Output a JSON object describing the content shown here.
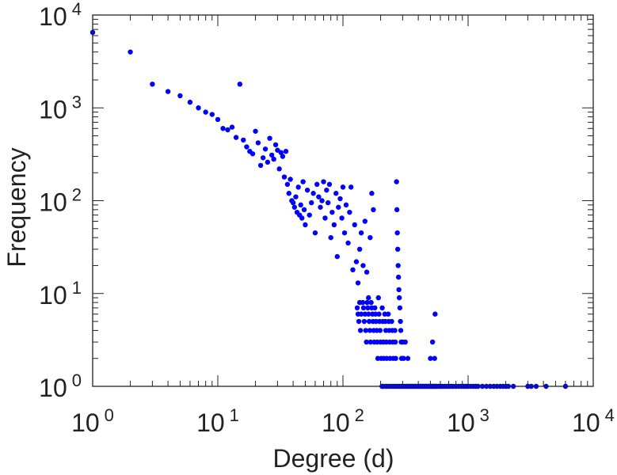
{
  "chart_data": {
    "type": "scatter",
    "title": "",
    "xlabel": "Degree (d)",
    "ylabel": "Frequency",
    "x_scale": "log",
    "y_scale": "log",
    "xlim": [
      1,
      10000
    ],
    "ylim": [
      1,
      10000
    ],
    "grid": false,
    "legend": "none",
    "marker_color": "#0000ff",
    "x_ticks": [
      {
        "base": "10",
        "exp": "0"
      },
      {
        "base": "10",
        "exp": "1"
      },
      {
        "base": "10",
        "exp": "2"
      },
      {
        "base": "10",
        "exp": "3"
      },
      {
        "base": "10",
        "exp": "4"
      }
    ],
    "y_ticks": [
      {
        "base": "10",
        "exp": "0"
      },
      {
        "base": "10",
        "exp": "1"
      },
      {
        "base": "10",
        "exp": "2"
      },
      {
        "base": "10",
        "exp": "3"
      },
      {
        "base": "10",
        "exp": "4"
      }
    ],
    "series": [
      {
        "points": [
          [
            1,
            6500
          ],
          [
            2,
            4000
          ],
          [
            3,
            1800
          ],
          [
            4,
            1500
          ],
          [
            5,
            1350
          ],
          [
            6,
            1150
          ],
          [
            7,
            1000
          ],
          [
            8,
            900
          ],
          [
            9,
            850
          ],
          [
            10,
            750
          ],
          [
            11,
            600
          ],
          [
            12,
            580
          ],
          [
            13,
            620
          ],
          [
            14,
            480
          ],
          [
            15,
            1800
          ],
          [
            16,
            450
          ],
          [
            17,
            380
          ],
          [
            18,
            340
          ],
          [
            19,
            320
          ],
          [
            20,
            560
          ],
          [
            21,
            420
          ],
          [
            22,
            240
          ],
          [
            23,
            290
          ],
          [
            24,
            360
          ],
          [
            25,
            260
          ],
          [
            26,
            470
          ],
          [
            27,
            310
          ],
          [
            28,
            280
          ],
          [
            29,
            400
          ],
          [
            30,
            350
          ],
          [
            31,
            220
          ],
          [
            32,
            330
          ],
          [
            33,
            300
          ],
          [
            34,
            180
          ],
          [
            35,
            340
          ],
          [
            36,
            150
          ],
          [
            37,
            120
          ],
          [
            38,
            170
          ],
          [
            39,
            100
          ],
          [
            40,
            95
          ],
          [
            41,
            85
          ],
          [
            42,
            110
          ],
          [
            43,
            75
          ],
          [
            44,
            140
          ],
          [
            45,
            70
          ],
          [
            46,
            90
          ],
          [
            47,
            65
          ],
          [
            48,
            160
          ],
          [
            49,
            80
          ],
          [
            50,
            55
          ],
          [
            52,
            130
          ],
          [
            54,
            70
          ],
          [
            56,
            95
          ],
          [
            58,
            120
          ],
          [
            60,
            45
          ],
          [
            62,
            150
          ],
          [
            64,
            110
          ],
          [
            66,
            85
          ],
          [
            68,
            100
          ],
          [
            70,
            160
          ],
          [
            72,
            65
          ],
          [
            74,
            130
          ],
          [
            76,
            95
          ],
          [
            78,
            150
          ],
          [
            80,
            40
          ],
          [
            82,
            75
          ],
          [
            85,
            55
          ],
          [
            88,
            120
          ],
          [
            90,
            25
          ],
          [
            92,
            85
          ],
          [
            95,
            105
          ],
          [
            98,
            65
          ],
          [
            100,
            140
          ],
          [
            103,
            45
          ],
          [
            106,
            90
          ],
          [
            110,
            35
          ],
          [
            113,
            75
          ],
          [
            116,
            140
          ],
          [
            120,
            18
          ],
          [
            124,
            55
          ],
          [
            128,
            22
          ],
          [
            132,
            13
          ],
          [
            136,
            30
          ],
          [
            140,
            45
          ],
          [
            145,
            20
          ],
          [
            150,
            60
          ],
          [
            155,
            17
          ],
          [
            160,
            9
          ],
          [
            165,
            40
          ],
          [
            170,
            120
          ],
          [
            175,
            80
          ],
          [
            130,
            7
          ],
          [
            132,
            6
          ],
          [
            134,
            5
          ],
          [
            136,
            8
          ],
          [
            138,
            4
          ],
          [
            140,
            6
          ],
          [
            144,
            8
          ],
          [
            146,
            7
          ],
          [
            148,
            5
          ],
          [
            150,
            6
          ],
          [
            152,
            4
          ],
          [
            154,
            3
          ],
          [
            156,
            8
          ],
          [
            158,
            7
          ],
          [
            160,
            6
          ],
          [
            162,
            5
          ],
          [
            164,
            4
          ],
          [
            166,
            3
          ],
          [
            168,
            8
          ],
          [
            170,
            7
          ],
          [
            172,
            6
          ],
          [
            174,
            5
          ],
          [
            176,
            4
          ],
          [
            178,
            3
          ],
          [
            180,
            7
          ],
          [
            182,
            6
          ],
          [
            184,
            5
          ],
          [
            186,
            4
          ],
          [
            188,
            3
          ],
          [
            190,
            2
          ],
          [
            192,
            9
          ],
          [
            194,
            6
          ],
          [
            196,
            5
          ],
          [
            198,
            4
          ],
          [
            200,
            3
          ],
          [
            202,
            2
          ],
          [
            205,
            1
          ],
          [
            206,
            7
          ],
          [
            208,
            5
          ],
          [
            210,
            3
          ],
          [
            212,
            2
          ],
          [
            216,
            6
          ],
          [
            218,
            5
          ],
          [
            220,
            4
          ],
          [
            222,
            3
          ],
          [
            224,
            2
          ],
          [
            230,
            6
          ],
          [
            232,
            5
          ],
          [
            234,
            4
          ],
          [
            236,
            3
          ],
          [
            238,
            2
          ],
          [
            245,
            5
          ],
          [
            248,
            4
          ],
          [
            250,
            3
          ],
          [
            252,
            2
          ],
          [
            260,
            4
          ],
          [
            262,
            3
          ],
          [
            264,
            2
          ],
          [
            268,
            160
          ],
          [
            270,
            80
          ],
          [
            272,
            45
          ],
          [
            274,
            30
          ],
          [
            276,
            20
          ],
          [
            278,
            15
          ],
          [
            280,
            11
          ],
          [
            282,
            9
          ],
          [
            285,
            7
          ],
          [
            288,
            5
          ],
          [
            290,
            4
          ],
          [
            292,
            3
          ],
          [
            294,
            2
          ],
          [
            300,
            3
          ],
          [
            305,
            2
          ],
          [
            315,
            3
          ],
          [
            330,
            2
          ],
          [
            500,
            2
          ],
          [
            520,
            3
          ],
          [
            540,
            2
          ],
          [
            545,
            6
          ],
          [
            210,
            1
          ],
          [
            220,
            1
          ],
          [
            230,
            1
          ],
          [
            240,
            1
          ],
          [
            250,
            1
          ],
          [
            260,
            1
          ],
          [
            270,
            1
          ],
          [
            280,
            1
          ],
          [
            290,
            1
          ],
          [
            300,
            1
          ],
          [
            310,
            1
          ],
          [
            320,
            1
          ],
          [
            330,
            1
          ],
          [
            340,
            1
          ],
          [
            350,
            1
          ],
          [
            360,
            1
          ],
          [
            370,
            1
          ],
          [
            380,
            1
          ],
          [
            390,
            1
          ],
          [
            400,
            1
          ],
          [
            410,
            1
          ],
          [
            420,
            1
          ],
          [
            430,
            1
          ],
          [
            440,
            1
          ],
          [
            450,
            1
          ],
          [
            460,
            1
          ],
          [
            470,
            1
          ],
          [
            480,
            1
          ],
          [
            490,
            1
          ],
          [
            500,
            1
          ],
          [
            510,
            1
          ],
          [
            520,
            1
          ],
          [
            530,
            1
          ],
          [
            540,
            1
          ],
          [
            550,
            1
          ],
          [
            560,
            1
          ],
          [
            580,
            1
          ],
          [
            600,
            1
          ],
          [
            620,
            1
          ],
          [
            650,
            1
          ],
          [
            680,
            1
          ],
          [
            700,
            1
          ],
          [
            730,
            1
          ],
          [
            760,
            1
          ],
          [
            800,
            1
          ],
          [
            840,
            1
          ],
          [
            880,
            1
          ],
          [
            920,
            1
          ],
          [
            960,
            1
          ],
          [
            1000,
            1
          ],
          [
            1050,
            1
          ],
          [
            1100,
            1
          ],
          [
            1150,
            1
          ],
          [
            1200,
            1
          ],
          [
            1300,
            1
          ],
          [
            1400,
            1
          ],
          [
            1500,
            1
          ],
          [
            1600,
            1
          ],
          [
            1700,
            1
          ],
          [
            1800,
            1
          ],
          [
            1900,
            1
          ],
          [
            2000,
            1
          ],
          [
            2100,
            1
          ],
          [
            2300,
            1
          ],
          [
            3000,
            1
          ],
          [
            3200,
            1
          ],
          [
            3500,
            1
          ],
          [
            4200,
            1
          ],
          [
            6000,
            1
          ]
        ]
      }
    ]
  }
}
